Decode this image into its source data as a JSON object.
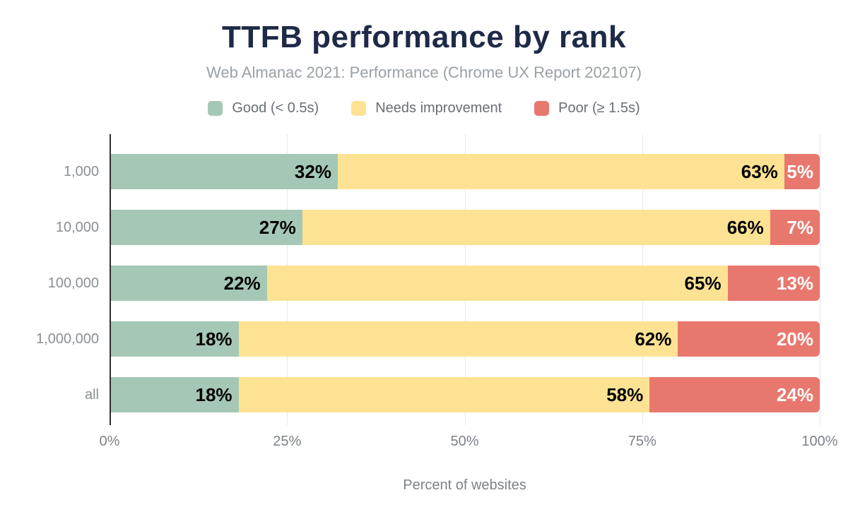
{
  "title": "TTFB performance by rank",
  "subtitle": "Web Almanac 2021: Performance (Chrome UX Report 202107)",
  "colors": {
    "title": "#1e2a47",
    "subtitle": "#9aa0a6",
    "axis_text": "#7d8288",
    "axis_line": "#2b2d33",
    "gridline": "#e8e8e8",
    "good": "#a5c8b6",
    "needs_improvement": "#fde294",
    "poor": "#e8786e"
  },
  "chart_data": {
    "type": "bar",
    "orientation": "horizontal",
    "stacked": true,
    "title": "TTFB performance by rank",
    "subtitle": "Web Almanac 2021: Performance (Chrome UX Report 202107)",
    "categories": [
      "1,000",
      "10,000",
      "100,000",
      "1,000,000",
      "all"
    ],
    "series": [
      {
        "key": "good",
        "name": "Good (< 0.5s)",
        "color": "#a5c8b6",
        "label_color": "#000000",
        "values": [
          32,
          27,
          22,
          18,
          18
        ]
      },
      {
        "key": "needs-improvement",
        "name": "Needs improvement",
        "color": "#fde294",
        "label_color": "#000000",
        "values": [
          63,
          66,
          65,
          62,
          58
        ]
      },
      {
        "key": "poor",
        "name": "Poor (≥ 1.5s)",
        "color": "#e8786e",
        "label_color": "#ffffff",
        "values": [
          5,
          7,
          13,
          20,
          24
        ]
      }
    ],
    "value_suffix": "%",
    "xlabel": "Percent of websites",
    "x_ticks": [
      {
        "label": "0%",
        "value": 0
      },
      {
        "label": "25%",
        "value": 25
      },
      {
        "label": "50%",
        "value": 50
      },
      {
        "label": "75%",
        "value": 75
      },
      {
        "label": "100%",
        "value": 100
      }
    ],
    "xlim": [
      0,
      100
    ],
    "grid": true,
    "gridline_values": [
      25,
      50,
      75,
      100
    ],
    "legend_position": "top"
  }
}
